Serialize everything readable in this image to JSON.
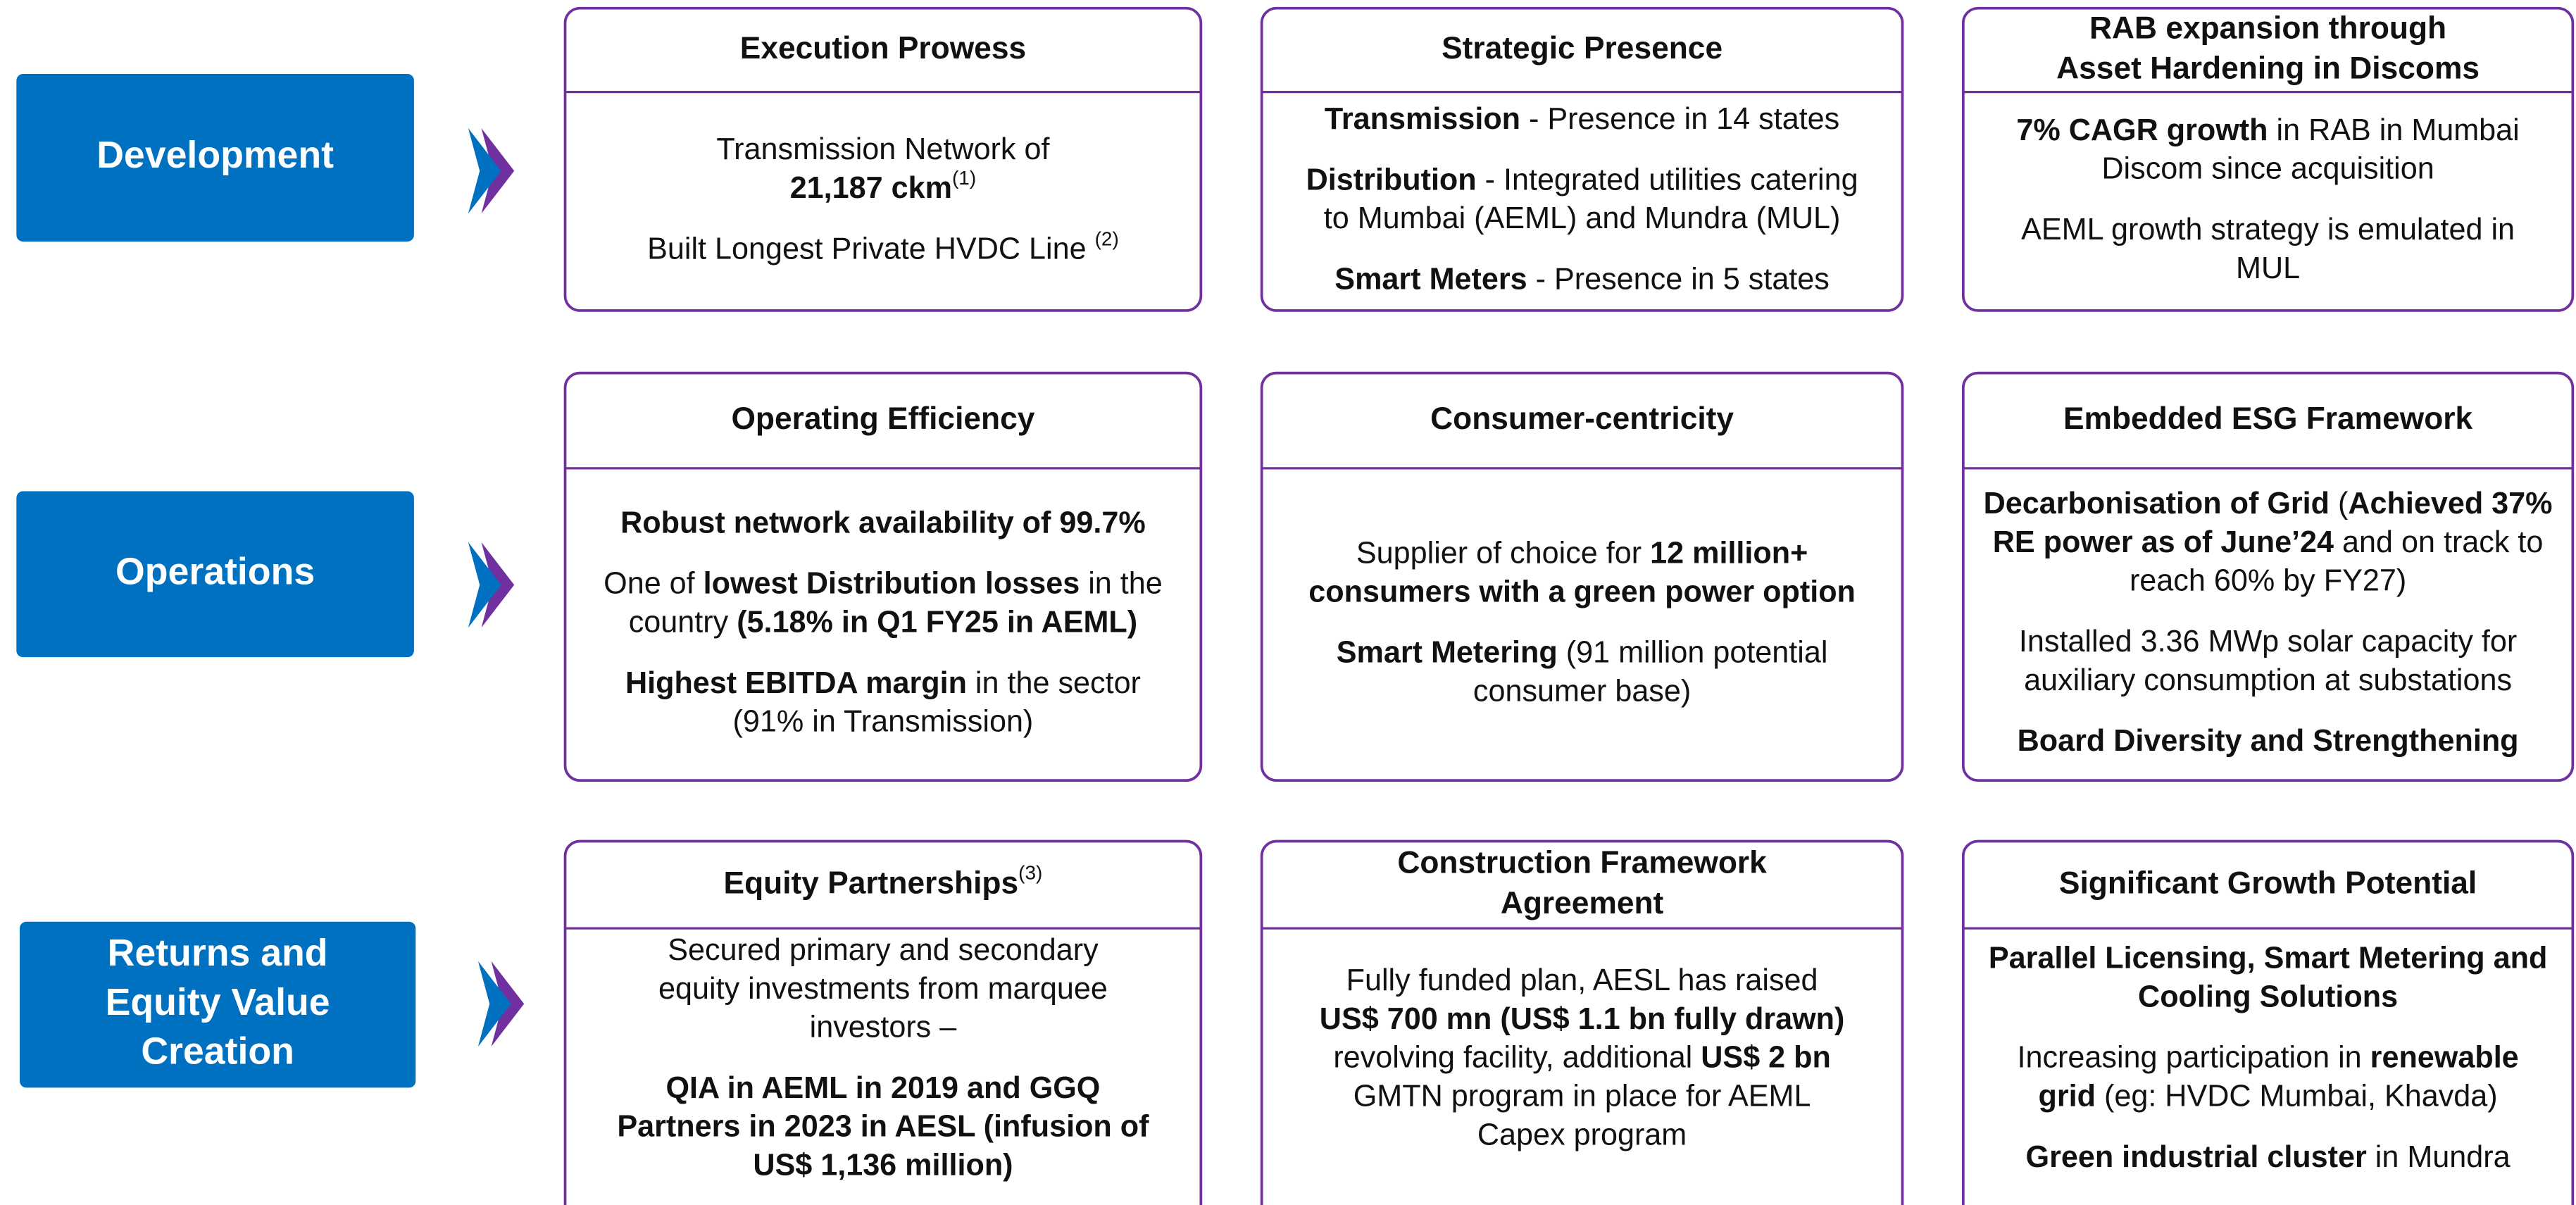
{
  "rows": [
    {
      "label": [
        "Development"
      ],
      "cards": [
        {
          "title": [
            [
              {
                "text": "Execution Prowess"
              }
            ]
          ],
          "paras": [
            [
              [
                {
                  "text": "Transmission Network of"
                }
              ],
              [
                {
                  "text": "21,187 ckm",
                  "style": "bold"
                },
                {
                  "text": "(1)",
                  "style": "sup"
                }
              ]
            ],
            [
              [
                {
                  "text": "Built Longest Private HVDC Line "
                },
                {
                  "text": "(2)",
                  "style": "sup"
                }
              ]
            ]
          ]
        },
        {
          "title": [
            [
              {
                "text": "Strategic Presence"
              }
            ]
          ],
          "paras": [
            [
              [
                {
                  "text": "Transmission",
                  "style": "bold"
                },
                {
                  "text": " - Presence in 14 states"
                }
              ]
            ],
            [
              [
                {
                  "text": "Distribution",
                  "style": "bold"
                },
                {
                  "text": " - Integrated utilities  catering"
                }
              ],
              [
                {
                  "text": "to Mumbai (AEML) and Mundra (MUL)"
                }
              ]
            ],
            [
              [
                {
                  "text": "Smart Meters",
                  "style": "bold"
                },
                {
                  "text": " - Presence in 5 states"
                }
              ]
            ]
          ]
        },
        {
          "title": [
            [
              {
                "text": "RAB expansion through"
              }
            ],
            [
              {
                "text": "Asset Hardening in Discoms"
              }
            ]
          ],
          "paras": [
            [
              [
                {
                  "text": "7% CAGR growth",
                  "style": "bold"
                },
                {
                  "text": " in RAB in Mumbai"
                }
              ],
              [
                {
                  "text": "Discom since acquisition"
                }
              ]
            ],
            [
              [
                {
                  "text": "AEML growth strategy is emulated in"
                }
              ],
              [
                {
                  "text": "MUL"
                }
              ]
            ]
          ]
        }
      ]
    },
    {
      "label": [
        "Operations"
      ],
      "cards": [
        {
          "title": [
            [
              {
                "text": "Operating Efficiency"
              }
            ]
          ],
          "paras": [
            [
              [
                {
                  "text": "Robust network availability of 99.7%",
                  "style": "bold"
                }
              ]
            ],
            [
              [
                {
                  "text": "One of "
                },
                {
                  "text": "lowest Distribution losses",
                  "style": "bold"
                },
                {
                  "text": " in the"
                }
              ],
              [
                {
                  "text": "country "
                },
                {
                  "text": "(5.18% in Q1 FY25 in AEML)",
                  "style": "bold"
                }
              ]
            ],
            [
              [
                {
                  "text": "Highest EBITDA margin",
                  "style": "bold"
                },
                {
                  "text": " in the sector"
                }
              ],
              [
                {
                  "text": "(91% in Transmission)"
                }
              ]
            ]
          ]
        },
        {
          "title": [
            [
              {
                "text": "Consumer-centricity"
              }
            ]
          ],
          "paras": [
            [
              [
                {
                  "text": "Supplier of choice for "
                },
                {
                  "text": "12 million+",
                  "style": "bold"
                }
              ],
              [
                {
                  "text": "consumers with a green power option",
                  "style": "bold"
                }
              ]
            ],
            [
              [
                {
                  "text": "Smart Metering",
                  "style": "bold"
                },
                {
                  "text": " (91 million potential"
                }
              ],
              [
                {
                  "text": "consumer base)"
                }
              ]
            ]
          ]
        },
        {
          "title": [
            [
              {
                "text": "Embedded ESG Framework"
              }
            ]
          ],
          "paras": [
            [
              [
                {
                  "text": "Decarbonisation of Grid",
                  "style": "bold"
                },
                {
                  "text": " ("
                },
                {
                  "text": "Achieved 37%",
                  "style": "bold"
                }
              ],
              [
                {
                  "text": "RE power as of June’24",
                  "style": "bold"
                },
                {
                  "text": " and on track to"
                }
              ],
              [
                {
                  "text": "reach 60% by FY27)"
                }
              ]
            ],
            [
              [
                {
                  "text": "Installed 3.36 MWp solar capacity for"
                }
              ],
              [
                {
                  "text": "auxiliary consumption at substations"
                }
              ]
            ],
            [
              [
                {
                  "text": "Board Diversity and Strengthening",
                  "style": "bold"
                }
              ]
            ]
          ]
        }
      ]
    },
    {
      "label": [
        "Returns and",
        "Equity Value",
        "Creation"
      ],
      "cards": [
        {
          "title": [
            [
              {
                "text": "Equity Partnerships"
              },
              {
                "text": "(3)",
                "style": "sup"
              }
            ]
          ],
          "paras": [
            [
              [
                {
                  "text": "Secured primary and secondary"
                }
              ],
              [
                {
                  "text": "equity investments from marquee"
                }
              ],
              [
                {
                  "text": "investors –"
                }
              ]
            ],
            [
              [
                {
                  "text": "QIA in AEML in 2019 and GGQ",
                  "style": "bold"
                }
              ],
              [
                {
                  "text": "Partners in 2023 in AESL  (infusion of",
                  "style": "bold"
                }
              ],
              [
                {
                  "text": "US$ 1,136 million)",
                  "style": "bold"
                }
              ]
            ]
          ]
        },
        {
          "title": [
            [
              {
                "text": "Construction Framework"
              }
            ],
            [
              {
                "text": "Agreement"
              }
            ]
          ],
          "paras": [
            [
              [
                {
                  "text": "Fully funded plan, AESL has raised"
                }
              ],
              [
                {
                  "text": "US$ 700 mn (US$ 1.1 bn fully drawn)",
                  "style": "bold"
                }
              ],
              [
                {
                  "text": "revolving facility, additional "
                },
                {
                  "text": "US$ 2 bn",
                  "style": "bold"
                }
              ],
              [
                {
                  "text": "GMTN program in place for AEML"
                }
              ],
              [
                {
                  "text": "Capex program"
                }
              ]
            ]
          ]
        },
        {
          "title": [
            [
              {
                "text": "Significant Growth Potential"
              }
            ]
          ],
          "paras": [
            [
              [
                {
                  "text": "Parallel Licensing, Smart Metering and",
                  "style": "bold"
                }
              ],
              [
                {
                  "text": "Cooling Solutions",
                  "style": "bold"
                }
              ]
            ],
            [
              [
                {
                  "text": "Increasing participation in "
                },
                {
                  "text": "renewable",
                  "style": "bold"
                }
              ],
              [
                {
                  "text": "grid",
                  "style": "bold"
                },
                {
                  "text": " (eg: HVDC Mumbai, Khavda)"
                }
              ]
            ],
            [
              [
                {
                  "text": "Green industrial cluster",
                  "style": "bold"
                },
                {
                  "text": " in Mundra"
                }
              ]
            ]
          ]
        }
      ]
    }
  ]
}
